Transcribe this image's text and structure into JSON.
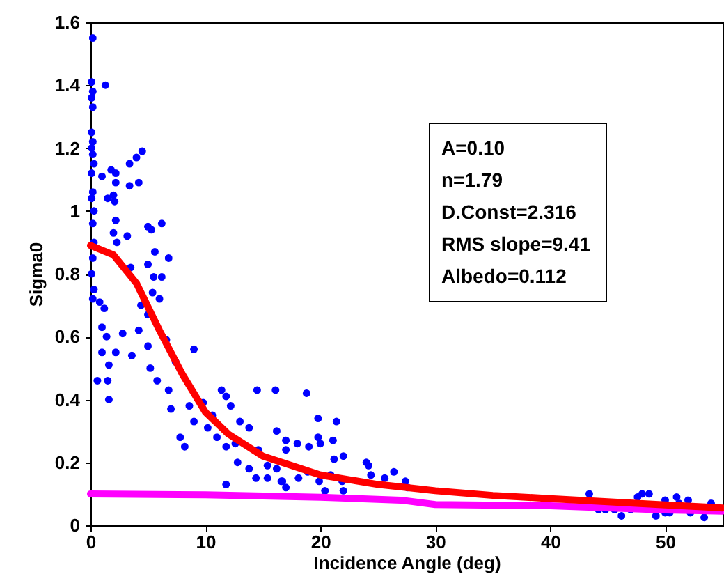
{
  "chart_data": {
    "type": "scatter",
    "xlabel": "Incidence Angle (deg)",
    "ylabel": "Sigma0",
    "xlim": [
      0,
      55
    ],
    "ylim": [
      0,
      1.6
    ],
    "xticks": [
      0,
      10,
      20,
      30,
      40,
      50
    ],
    "yticks": [
      0,
      0.2,
      0.4,
      0.6,
      0.8,
      1,
      1.2,
      1.4,
      1.6
    ],
    "grid": false,
    "annotations": [
      "A=0.10",
      "n=1.79",
      "D.Const=2.316",
      "RMS slope=9.41",
      "Albedo=0.112"
    ],
    "series": [
      {
        "color": "#0000ff",
        "x": [
          0.2,
          0.1,
          0.2,
          0.1,
          0.2,
          0.1,
          0.2,
          0.1,
          0.2,
          0.3,
          0.1,
          0.2,
          0.1,
          0.3,
          0.2,
          0.3,
          0.2,
          0.1,
          0.3,
          0.2,
          1.3,
          1,
          1.8,
          2.2,
          2.2,
          3.4,
          3.4,
          4,
          4.5,
          4.2,
          1.5,
          2,
          2.1,
          2.2,
          2,
          2.3,
          3.2,
          5,
          5.3,
          6.2,
          5.6,
          6.8,
          5,
          3.5,
          5.5,
          6.2,
          0.8,
          1.2,
          1,
          1.4,
          2.8,
          1,
          1.6,
          2.2,
          0.6,
          1.5,
          1.6,
          4.4,
          5,
          5.4,
          6,
          4.2,
          5,
          6.6,
          3.6,
          5.2,
          5.8,
          6.8,
          7.4,
          9,
          7,
          7.8,
          8.2,
          9,
          9.8,
          8.6,
          10.2,
          10.6,
          11.4,
          11.8,
          12.2,
          11,
          11.8,
          12.6,
          13,
          13.8,
          14.5,
          16.1,
          14.6,
          15.4,
          16.2,
          17,
          11.8,
          12.8,
          13.8,
          14.4,
          15.4,
          16.6,
          17,
          18.8,
          19.8,
          21.4,
          19.8,
          16.2,
          17,
          18,
          19,
          20,
          21.1,
          22,
          21.2,
          20.9,
          19.9,
          18.9,
          18.1,
          16.7,
          21.9,
          24,
          24.2,
          24.4,
          25.6,
          26.4,
          27.4,
          27.6,
          22,
          20.4,
          43.4,
          44.2,
          44.8,
          45.6,
          46.2,
          47,
          47.6,
          48,
          48.6,
          49.2,
          50,
          50.4,
          51,
          51.2,
          52,
          52.2,
          53.4,
          54,
          50
        ],
        "values": [
          1.55,
          1.41,
          1.38,
          1.36,
          1.33,
          1.25,
          1.22,
          1.2,
          1.18,
          1.15,
          1.12,
          1.06,
          1.04,
          1,
          0.96,
          0.9,
          0.85,
          0.8,
          0.75,
          0.72,
          1.4,
          1.11,
          1.13,
          1.12,
          1.09,
          1.15,
          1.08,
          1.17,
          1.19,
          1.09,
          1.04,
          1.05,
          1.03,
          0.97,
          0.93,
          0.9,
          0.92,
          0.95,
          0.94,
          0.96,
          0.87,
          0.85,
          0.83,
          0.82,
          0.79,
          0.79,
          0.71,
          0.69,
          0.63,
          0.6,
          0.61,
          0.55,
          0.51,
          0.55,
          0.46,
          0.46,
          0.4,
          0.7,
          0.67,
          0.74,
          0.72,
          0.62,
          0.57,
          0.59,
          0.54,
          0.5,
          0.46,
          0.43,
          0.52,
          0.56,
          0.37,
          0.28,
          0.25,
          0.33,
          0.39,
          0.38,
          0.31,
          0.35,
          0.43,
          0.41,
          0.38,
          0.28,
          0.25,
          0.26,
          0.33,
          0.31,
          0.43,
          0.43,
          0.24,
          0.19,
          0.18,
          0.24,
          0.13,
          0.2,
          0.18,
          0.15,
          0.15,
          0.14,
          0.12,
          0.42,
          0.34,
          0.33,
          0.28,
          0.3,
          0.27,
          0.26,
          0.25,
          0.26,
          0.27,
          0.22,
          0.21,
          0.16,
          0.14,
          0.17,
          0.15,
          0.14,
          0.14,
          0.2,
          0.19,
          0.16,
          0.15,
          0.17,
          0.14,
          0.12,
          0.11,
          0.11,
          0.1,
          0.05,
          0.05,
          0.05,
          0.03,
          0.05,
          0.09,
          0.1,
          0.1,
          0.03,
          0.08,
          0.04,
          0.09,
          0.07,
          0.08,
          0.04,
          0.025,
          0.07,
          0.04
        ]
      },
      {
        "type": "line",
        "color": "#ff00ff",
        "x": [
          0,
          10,
          20,
          27,
          30,
          40,
          50,
          55
        ],
        "values": [
          0.1,
          0.097,
          0.089,
          0.08,
          0.066,
          0.062,
          0.049,
          0.045
        ]
      },
      {
        "type": "line",
        "color": "#ff0000",
        "x": [
          0,
          2,
          4,
          6,
          8,
          10,
          12,
          15,
          20,
          25,
          30,
          35,
          40,
          45,
          50,
          55
        ],
        "values": [
          0.89,
          0.86,
          0.77,
          0.62,
          0.48,
          0.36,
          0.29,
          0.22,
          0.16,
          0.13,
          0.11,
          0.095,
          0.085,
          0.075,
          0.065,
          0.055
        ]
      }
    ]
  }
}
